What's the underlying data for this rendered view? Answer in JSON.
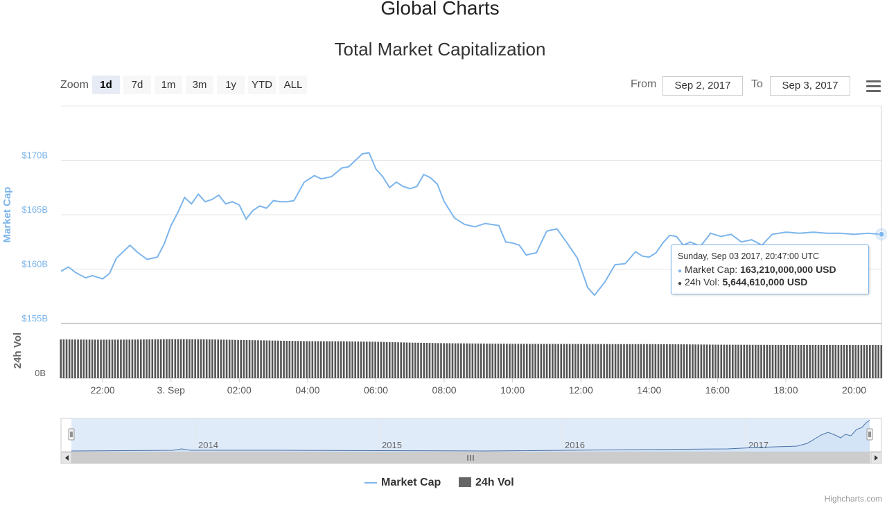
{
  "header": {
    "page_title": "Global Charts",
    "chart_title": "Total Market Capitalization"
  },
  "range_selector": {
    "zoom_label": "Zoom",
    "buttons": [
      "1d",
      "7d",
      "1m",
      "3m",
      "1y",
      "YTD",
      "ALL"
    ],
    "active": "1d",
    "from_label": "From",
    "from_value": "Sep 2, 2017",
    "to_label": "To",
    "to_value": "Sep 3, 2017"
  },
  "tooltip": {
    "date": "Sunday, Sep 03 2017, 20:47:00 UTC",
    "market_cap_label": "Market Cap: ",
    "market_cap_value": "163,210,000,000 USD",
    "vol_label": "24h Vol: ",
    "vol_value": "5,644,610,000 USD"
  },
  "legend": {
    "market_cap": "Market Cap",
    "volume": "24h Vol"
  },
  "credits": "Highcharts.com",
  "colors": {
    "market_cap": "#7cb5ec",
    "volume": "#434348",
    "navigator_fill": "#dbe8f8"
  },
  "chart_data": {
    "type": "line",
    "title": "Total Market Capitalization",
    "x_start": "Sep 2, 2017 20:47 UTC",
    "x_end": "Sep 3, 2017 20:47 UTC",
    "x_ticks": [
      "22:00",
      "3. Sep",
      "02:00",
      "04:00",
      "06:00",
      "08:00",
      "10:00",
      "12:00",
      "14:00",
      "16:00",
      "18:00",
      "20:00"
    ],
    "x_tick_hours": [
      22,
      24,
      26,
      28,
      30,
      32,
      34,
      36,
      38,
      40,
      42,
      44
    ],
    "upper_panel": {
      "ylabel": "Market Cap",
      "yticks": [
        "$155B",
        "$160B",
        "$165B",
        "$170B"
      ],
      "ytick_values": [
        155,
        160,
        165,
        170
      ],
      "ylim": [
        155,
        175
      ]
    },
    "lower_panel": {
      "ylabel": "24h Vol",
      "yticks": [
        "0B"
      ]
    },
    "series": [
      {
        "name": "Market Cap",
        "unit": "B USD",
        "x_hours": [
          20.78,
          21.0,
          21.2,
          21.5,
          21.7,
          22.0,
          22.2,
          22.4,
          22.8,
          23.0,
          23.3,
          23.6,
          23.8,
          24.0,
          24.2,
          24.4,
          24.6,
          24.8,
          25.0,
          25.2,
          25.4,
          25.6,
          25.8,
          26.0,
          26.2,
          26.4,
          26.6,
          26.8,
          27.0,
          27.2,
          27.4,
          27.6,
          27.9,
          28.2,
          28.4,
          28.7,
          29.0,
          29.2,
          29.4,
          29.6,
          29.8,
          30.0,
          30.2,
          30.4,
          30.6,
          30.8,
          31.0,
          31.2,
          31.4,
          31.6,
          31.8,
          32.0,
          32.3,
          32.6,
          32.9,
          33.2,
          33.4,
          33.6,
          33.8,
          34.0,
          34.2,
          34.4,
          34.7,
          35.0,
          35.3,
          35.6,
          35.9,
          36.2,
          36.4,
          36.7,
          37.0,
          37.3,
          37.6,
          37.8,
          38.0,
          38.2,
          38.4,
          38.6,
          38.8,
          39.0,
          39.2,
          39.5,
          39.8,
          40.1,
          40.4,
          40.7,
          41.0,
          41.3,
          41.6,
          42.0,
          42.4,
          42.8,
          43.2,
          43.6,
          44.0,
          44.4,
          44.8
        ],
        "values": [
          159.8,
          160.2,
          159.7,
          159.2,
          159.4,
          159.1,
          159.6,
          161.0,
          162.2,
          161.6,
          160.9,
          161.1,
          162.3,
          164.0,
          165.2,
          166.6,
          166.0,
          166.9,
          166.2,
          166.4,
          166.8,
          166.0,
          166.2,
          165.9,
          164.6,
          165.4,
          165.8,
          165.6,
          166.3,
          166.2,
          166.2,
          166.3,
          168.0,
          168.6,
          168.3,
          168.5,
          169.3,
          169.4,
          170.0,
          170.6,
          170.7,
          169.2,
          168.5,
          167.5,
          168.0,
          167.6,
          167.4,
          167.6,
          168.7,
          168.4,
          167.8,
          166.2,
          164.7,
          164.1,
          163.9,
          164.2,
          164.1,
          164.0,
          162.5,
          162.4,
          162.2,
          161.3,
          161.5,
          163.5,
          163.7,
          162.4,
          161.0,
          158.3,
          157.6,
          158.8,
          160.4,
          160.5,
          161.6,
          161.2,
          161.1,
          161.5,
          162.4,
          163.1,
          163.0,
          162.2,
          162.5,
          162.1,
          163.3,
          163.0,
          163.2,
          162.5,
          162.7,
          162.2,
          163.2,
          163.4,
          163.3,
          163.4,
          163.3,
          163.3,
          163.2,
          163.3,
          163.2
        ]
      },
      {
        "name": "24h Vol",
        "unit": "B USD",
        "x_hours": [
          20.78,
          22.0,
          23.0,
          24.0,
          25.0,
          26.0,
          27.0,
          28.0,
          29.0,
          30.0,
          31.0,
          32.0,
          33.0,
          34.0,
          35.0,
          36.0,
          37.0,
          38.0,
          39.0,
          40.0,
          41.0,
          42.0,
          43.0,
          44.0,
          44.8
        ],
        "values": [
          6.6,
          6.55,
          6.58,
          6.65,
          6.62,
          6.5,
          6.4,
          6.3,
          6.28,
          6.2,
          6.05,
          5.95,
          5.9,
          5.85,
          5.83,
          5.82,
          5.8,
          5.8,
          5.76,
          5.7,
          5.68,
          5.66,
          5.65,
          5.645,
          5.645
        ]
      }
    ],
    "navigator": {
      "x_labels": [
        "2014",
        "2015",
        "2016",
        "2017"
      ]
    }
  }
}
